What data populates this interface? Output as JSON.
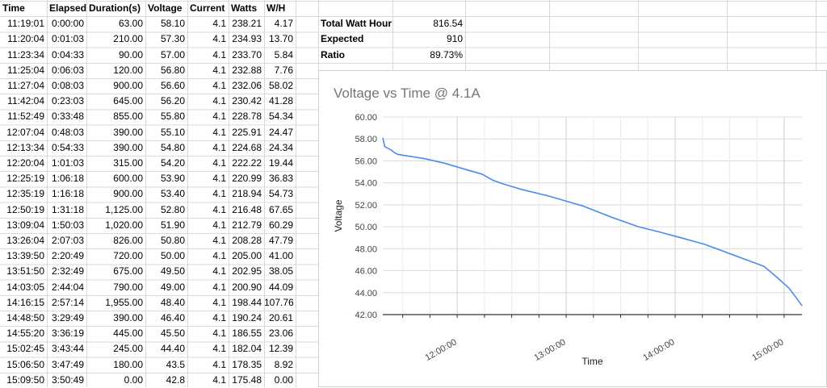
{
  "sheet": {
    "headers": [
      "Time",
      "Elapsed",
      "Duration(s)",
      "Voltage",
      "Current",
      "Watts",
      "W/H"
    ],
    "rows": [
      [
        "11:19:01",
        "0:00:00",
        "63.00",
        "58.10",
        "4.1",
        "238.21",
        "4.17"
      ],
      [
        "11:20:04",
        "0:01:03",
        "210.00",
        "57.30",
        "4.1",
        "234.93",
        "13.70"
      ],
      [
        "11:23:34",
        "0:04:33",
        "90.00",
        "57.00",
        "4.1",
        "233.70",
        "5.84"
      ],
      [
        "11:25:04",
        "0:06:03",
        "120.00",
        "56.80",
        "4.1",
        "232.88",
        "7.76"
      ],
      [
        "11:27:04",
        "0:08:03",
        "900.00",
        "56.60",
        "4.1",
        "232.06",
        "58.02"
      ],
      [
        "11:42:04",
        "0:23:03",
        "645.00",
        "56.20",
        "4.1",
        "230.42",
        "41.28"
      ],
      [
        "11:52:49",
        "0:33:48",
        "855.00",
        "55.80",
        "4.1",
        "228.78",
        "54.34"
      ],
      [
        "12:07:04",
        "0:48:03",
        "390.00",
        "55.10",
        "4.1",
        "225.91",
        "24.47"
      ],
      [
        "12:13:34",
        "0:54:33",
        "390.00",
        "54.80",
        "4.1",
        "224.68",
        "24.34"
      ],
      [
        "12:20:04",
        "1:01:03",
        "315.00",
        "54.20",
        "4.1",
        "222.22",
        "19.44"
      ],
      [
        "12:25:19",
        "1:06:18",
        "600.00",
        "53.90",
        "4.1",
        "220.99",
        "36.83"
      ],
      [
        "12:35:19",
        "1:16:18",
        "900.00",
        "53.40",
        "4.1",
        "218.94",
        "54.73"
      ],
      [
        "12:50:19",
        "1:31:18",
        "1,125.00",
        "52.80",
        "4.1",
        "216.48",
        "67.65"
      ],
      [
        "13:09:04",
        "1:50:03",
        "1,020.00",
        "51.90",
        "4.1",
        "212.79",
        "60.29"
      ],
      [
        "13:26:04",
        "2:07:03",
        "826.00",
        "50.80",
        "4.1",
        "208.28",
        "47.79"
      ],
      [
        "13:39:50",
        "2:20:49",
        "720.00",
        "50.00",
        "4.1",
        "205.00",
        "41.00"
      ],
      [
        "13:51:50",
        "2:32:49",
        "675.00",
        "49.50",
        "4.1",
        "202.95",
        "38.05"
      ],
      [
        "14:03:05",
        "2:44:04",
        "790.00",
        "49.00",
        "4.1",
        "200.90",
        "44.09"
      ],
      [
        "14:16:15",
        "2:57:14",
        "1,955.00",
        "48.40",
        "4.1",
        "198.44",
        "107.76"
      ],
      [
        "14:48:50",
        "3:29:49",
        "390.00",
        "46.40",
        "4.1",
        "190.24",
        "20.61"
      ],
      [
        "14:55:20",
        "3:36:19",
        "445.00",
        "45.50",
        "4.1",
        "186.55",
        "23.06"
      ],
      [
        "15:02:45",
        "3:43:44",
        "245.00",
        "44.40",
        "4.1",
        "182.04",
        "12.39"
      ],
      [
        "15:06:50",
        "3:47:49",
        "180.00",
        "43.5",
        "4.1",
        "178.35",
        "8.92"
      ],
      [
        "15:09:50",
        "3:50:49",
        "0.00",
        "42.8",
        "4.1",
        "175.48",
        "0.00"
      ]
    ],
    "summary": [
      {
        "label": "Total Watt Hour",
        "value": "816.54"
      },
      {
        "label": "Expected",
        "value": "910"
      },
      {
        "label": "Ratio",
        "value": "89.73%"
      }
    ]
  },
  "chart_data": {
    "type": "line",
    "title": "Voltage vs Time @ 4.1A",
    "xlabel": "Time",
    "ylabel": "Voltage",
    "ylim": [
      42,
      60
    ],
    "yticks": [
      "42.00",
      "44.00",
      "46.00",
      "48.00",
      "50.00",
      "52.00",
      "54.00",
      "56.00",
      "58.00",
      "60.00"
    ],
    "xticks": [
      "12:00:00",
      "13:00:00",
      "14:00:00",
      "15:00:00"
    ],
    "xlim": [
      "11:19:01",
      "15:09:50"
    ],
    "grid": true,
    "legend": "none",
    "color": "#4a8af4",
    "series": [
      {
        "x": [
          "11:19:01",
          "11:20:04",
          "11:23:34",
          "11:25:04",
          "11:27:04",
          "11:42:04",
          "11:52:49",
          "12:07:04",
          "12:13:34",
          "12:20:04",
          "12:25:19",
          "12:35:19",
          "12:50:19",
          "13:09:04",
          "13:26:04",
          "13:39:50",
          "13:51:50",
          "14:03:05",
          "14:16:15",
          "14:48:50",
          "14:55:20",
          "15:02:45",
          "15:06:50",
          "15:09:50"
        ],
        "values": [
          58.1,
          57.3,
          57.0,
          56.8,
          56.6,
          56.2,
          55.8,
          55.1,
          54.8,
          54.2,
          53.9,
          53.4,
          52.8,
          51.9,
          50.8,
          50.0,
          49.5,
          49.0,
          48.4,
          46.4,
          45.5,
          44.4,
          43.5,
          42.8
        ]
      }
    ]
  }
}
